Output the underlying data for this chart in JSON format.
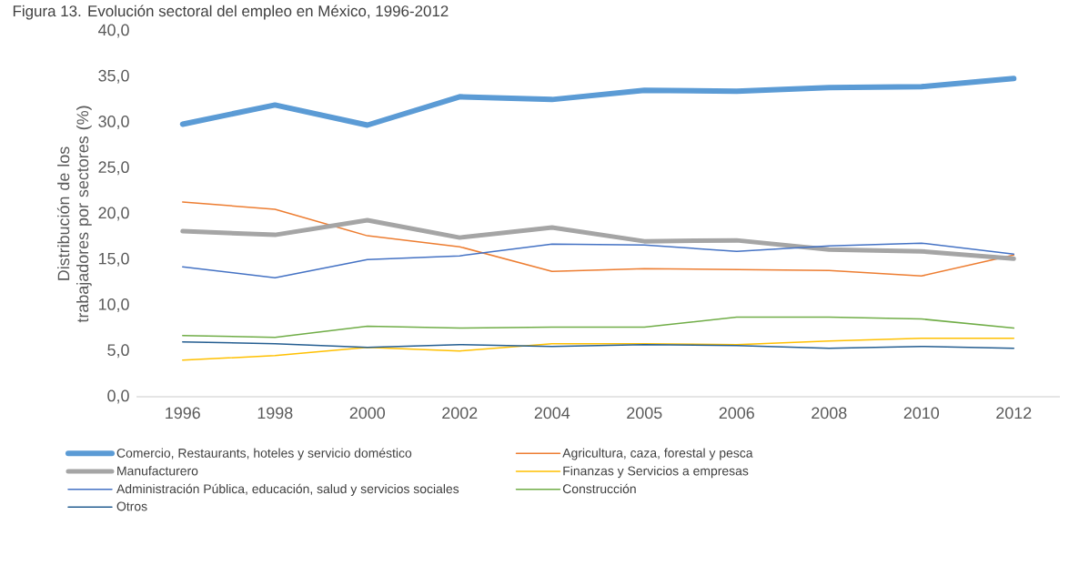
{
  "chart_data": {
    "type": "line",
    "title": "Figura 13. Evolución sectoral del empleo en México, 1996-2012",
    "ylabel": "Distribución de los trabajadores por sectores (%)",
    "categories": [
      "1996",
      "1998",
      "2000",
      "2002",
      "2004",
      "2005",
      "2006",
      "2008",
      "2010",
      "2012"
    ],
    "ylim": [
      0,
      40
    ],
    "yticks": [
      {
        "value": 0,
        "label": "0,0"
      },
      {
        "value": 5,
        "label": "5,0"
      },
      {
        "value": 10,
        "label": "10,0"
      },
      {
        "value": 15,
        "label": "15,0"
      },
      {
        "value": 20,
        "label": "20,0"
      },
      {
        "value": 25,
        "label": "25,0"
      },
      {
        "value": 30,
        "label": "30,0"
      },
      {
        "value": 35,
        "label": "35,0"
      },
      {
        "value": 40,
        "label": "40,0"
      }
    ],
    "grid": false,
    "legend": "bottom",
    "marker": "none",
    "line_style": "solid",
    "series": [
      {
        "name": "Comercio, Restaurants, hoteles y servicio doméstico",
        "color": "#5b9bd5",
        "values": [
          29.8,
          31.9,
          29.7,
          32.8,
          32.5,
          33.5,
          33.4,
          33.8,
          33.9,
          34.8
        ]
      },
      {
        "name": "Agricultura, caza, forestal y pesca",
        "color": "#ed7d31",
        "values": [
          21.3,
          20.5,
          17.6,
          16.4,
          13.7,
          14.0,
          13.9,
          13.8,
          13.2,
          15.5
        ]
      },
      {
        "name": "Manufacturero",
        "color": "#a5a5a5",
        "values": [
          18.1,
          17.7,
          19.3,
          17.4,
          18.5,
          17.0,
          17.1,
          16.1,
          15.9,
          15.1
        ]
      },
      {
        "name": "Finanzas y Servicios a empresas",
        "color": "#ffc000",
        "values": [
          4.0,
          4.5,
          5.4,
          5.0,
          5.8,
          5.8,
          5.7,
          6.1,
          6.4,
          6.4
        ]
      },
      {
        "name": "Administración Pública, educación, salud y servicios sociales",
        "color": "#4472c4",
        "values": [
          14.2,
          13.0,
          15.0,
          15.4,
          16.7,
          16.6,
          15.9,
          16.5,
          16.8,
          15.6
        ]
      },
      {
        "name": "Construcción",
        "color": "#70ad47",
        "values": [
          6.7,
          6.5,
          7.7,
          7.5,
          7.6,
          7.6,
          8.7,
          8.7,
          8.5,
          7.5
        ]
      },
      {
        "name": "Otros",
        "color": "#255e91",
        "values": [
          6.0,
          5.8,
          5.4,
          5.7,
          5.5,
          5.7,
          5.6,
          5.3,
          5.5,
          5.3
        ]
      }
    ]
  }
}
